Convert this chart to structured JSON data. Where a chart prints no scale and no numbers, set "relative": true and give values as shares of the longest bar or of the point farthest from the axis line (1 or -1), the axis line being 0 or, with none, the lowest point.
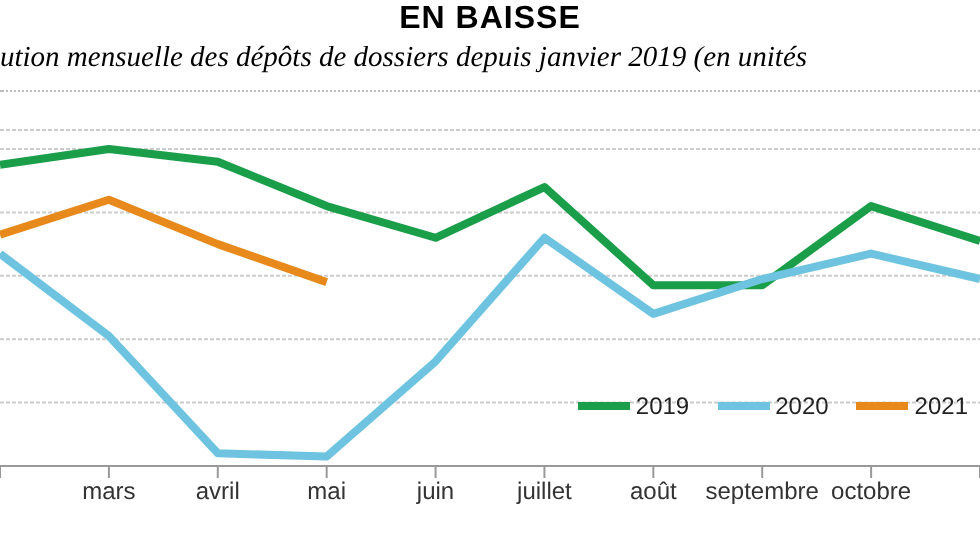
{
  "chart_data": {
    "type": "line",
    "title": "EN BAISSE",
    "subtitle": "ution mensuelle des dépôts de dossiers depuis janvier 2019 (en unités",
    "categories": [
      null,
      "mars",
      "avril",
      "mai",
      "juin",
      "juillet",
      "août",
      "septembre",
      "octobre",
      null
    ],
    "relative": true,
    "grid": "y",
    "legend": "bottom right",
    "marker": "none",
    "line_style": "solid",
    "series": [
      {
        "name": "2019",
        "color": "#1a9e4a",
        "values": [
          0.95,
          1,
          0.96,
          0.82,
          0.72,
          0.88,
          0.57,
          0.57,
          0.82,
          0.71
        ]
      },
      {
        "name": "2020",
        "color": "#6ec4e0",
        "values": [
          0.67,
          0.41,
          0.04,
          0.03,
          0.33,
          0.72,
          0.48,
          0.59,
          0.67,
          0.59
        ]
      },
      {
        "name": "2021",
        "color": "#e8891c",
        "values": [
          0.73,
          0.84,
          0.7,
          0.58,
          null,
          null,
          null,
          null,
          null,
          null
        ]
      }
    ]
  }
}
